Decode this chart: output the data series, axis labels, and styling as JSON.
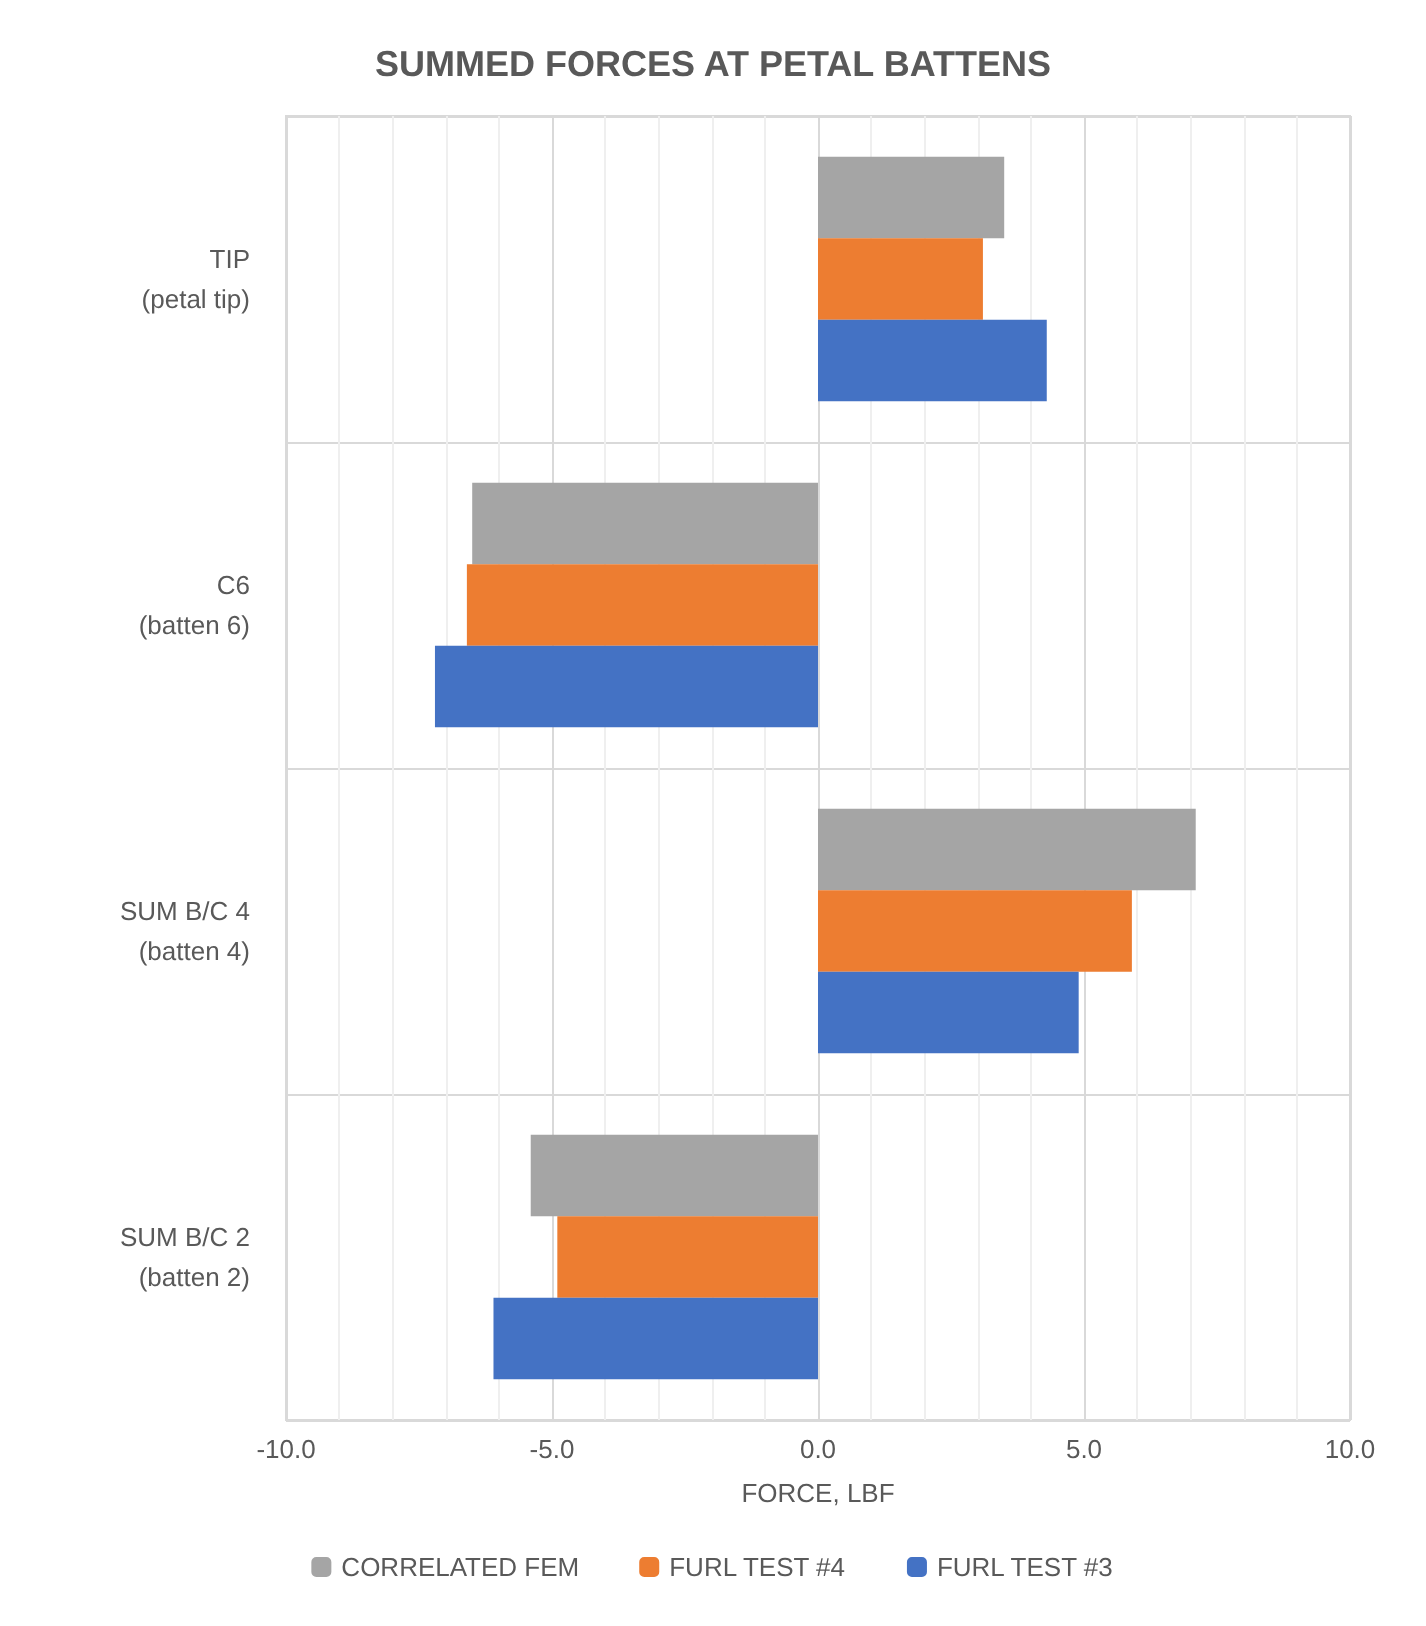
{
  "chart_data": {
    "type": "bar",
    "orientation": "horizontal",
    "title": "SUMMED FORCES AT PETAL BATTENS",
    "xlabel": "FORCE, LBF",
    "categories": [
      "TIP\n(petal tip)",
      "C6\n(batten 6)",
      "SUM B/C 4\n(batten 4)",
      "SUM B/C 2\n(batten 2)"
    ],
    "series": [
      {
        "name": "CORRELATED FEM",
        "color": "#a5a5a5",
        "values": [
          3.5,
          -6.5,
          7.1,
          -5.4
        ]
      },
      {
        "name": "FURL TEST #4",
        "color": "#ed7d31",
        "values": [
          3.1,
          -6.6,
          5.9,
          -4.9
        ]
      },
      {
        "name": "FURL TEST #3",
        "color": "#4472c4",
        "values": [
          4.3,
          -7.2,
          4.9,
          -6.1
        ]
      }
    ],
    "xlim": [
      -10,
      10
    ],
    "xticks": [
      {
        "value": -10,
        "label": "-10.0"
      },
      {
        "value": -5,
        "label": "-5.0"
      },
      {
        "value": 0,
        "label": "0.0"
      },
      {
        "value": 5,
        "label": "5.0"
      },
      {
        "value": 10,
        "label": "10.0"
      }
    ],
    "grid": true,
    "legend": "bottom"
  }
}
